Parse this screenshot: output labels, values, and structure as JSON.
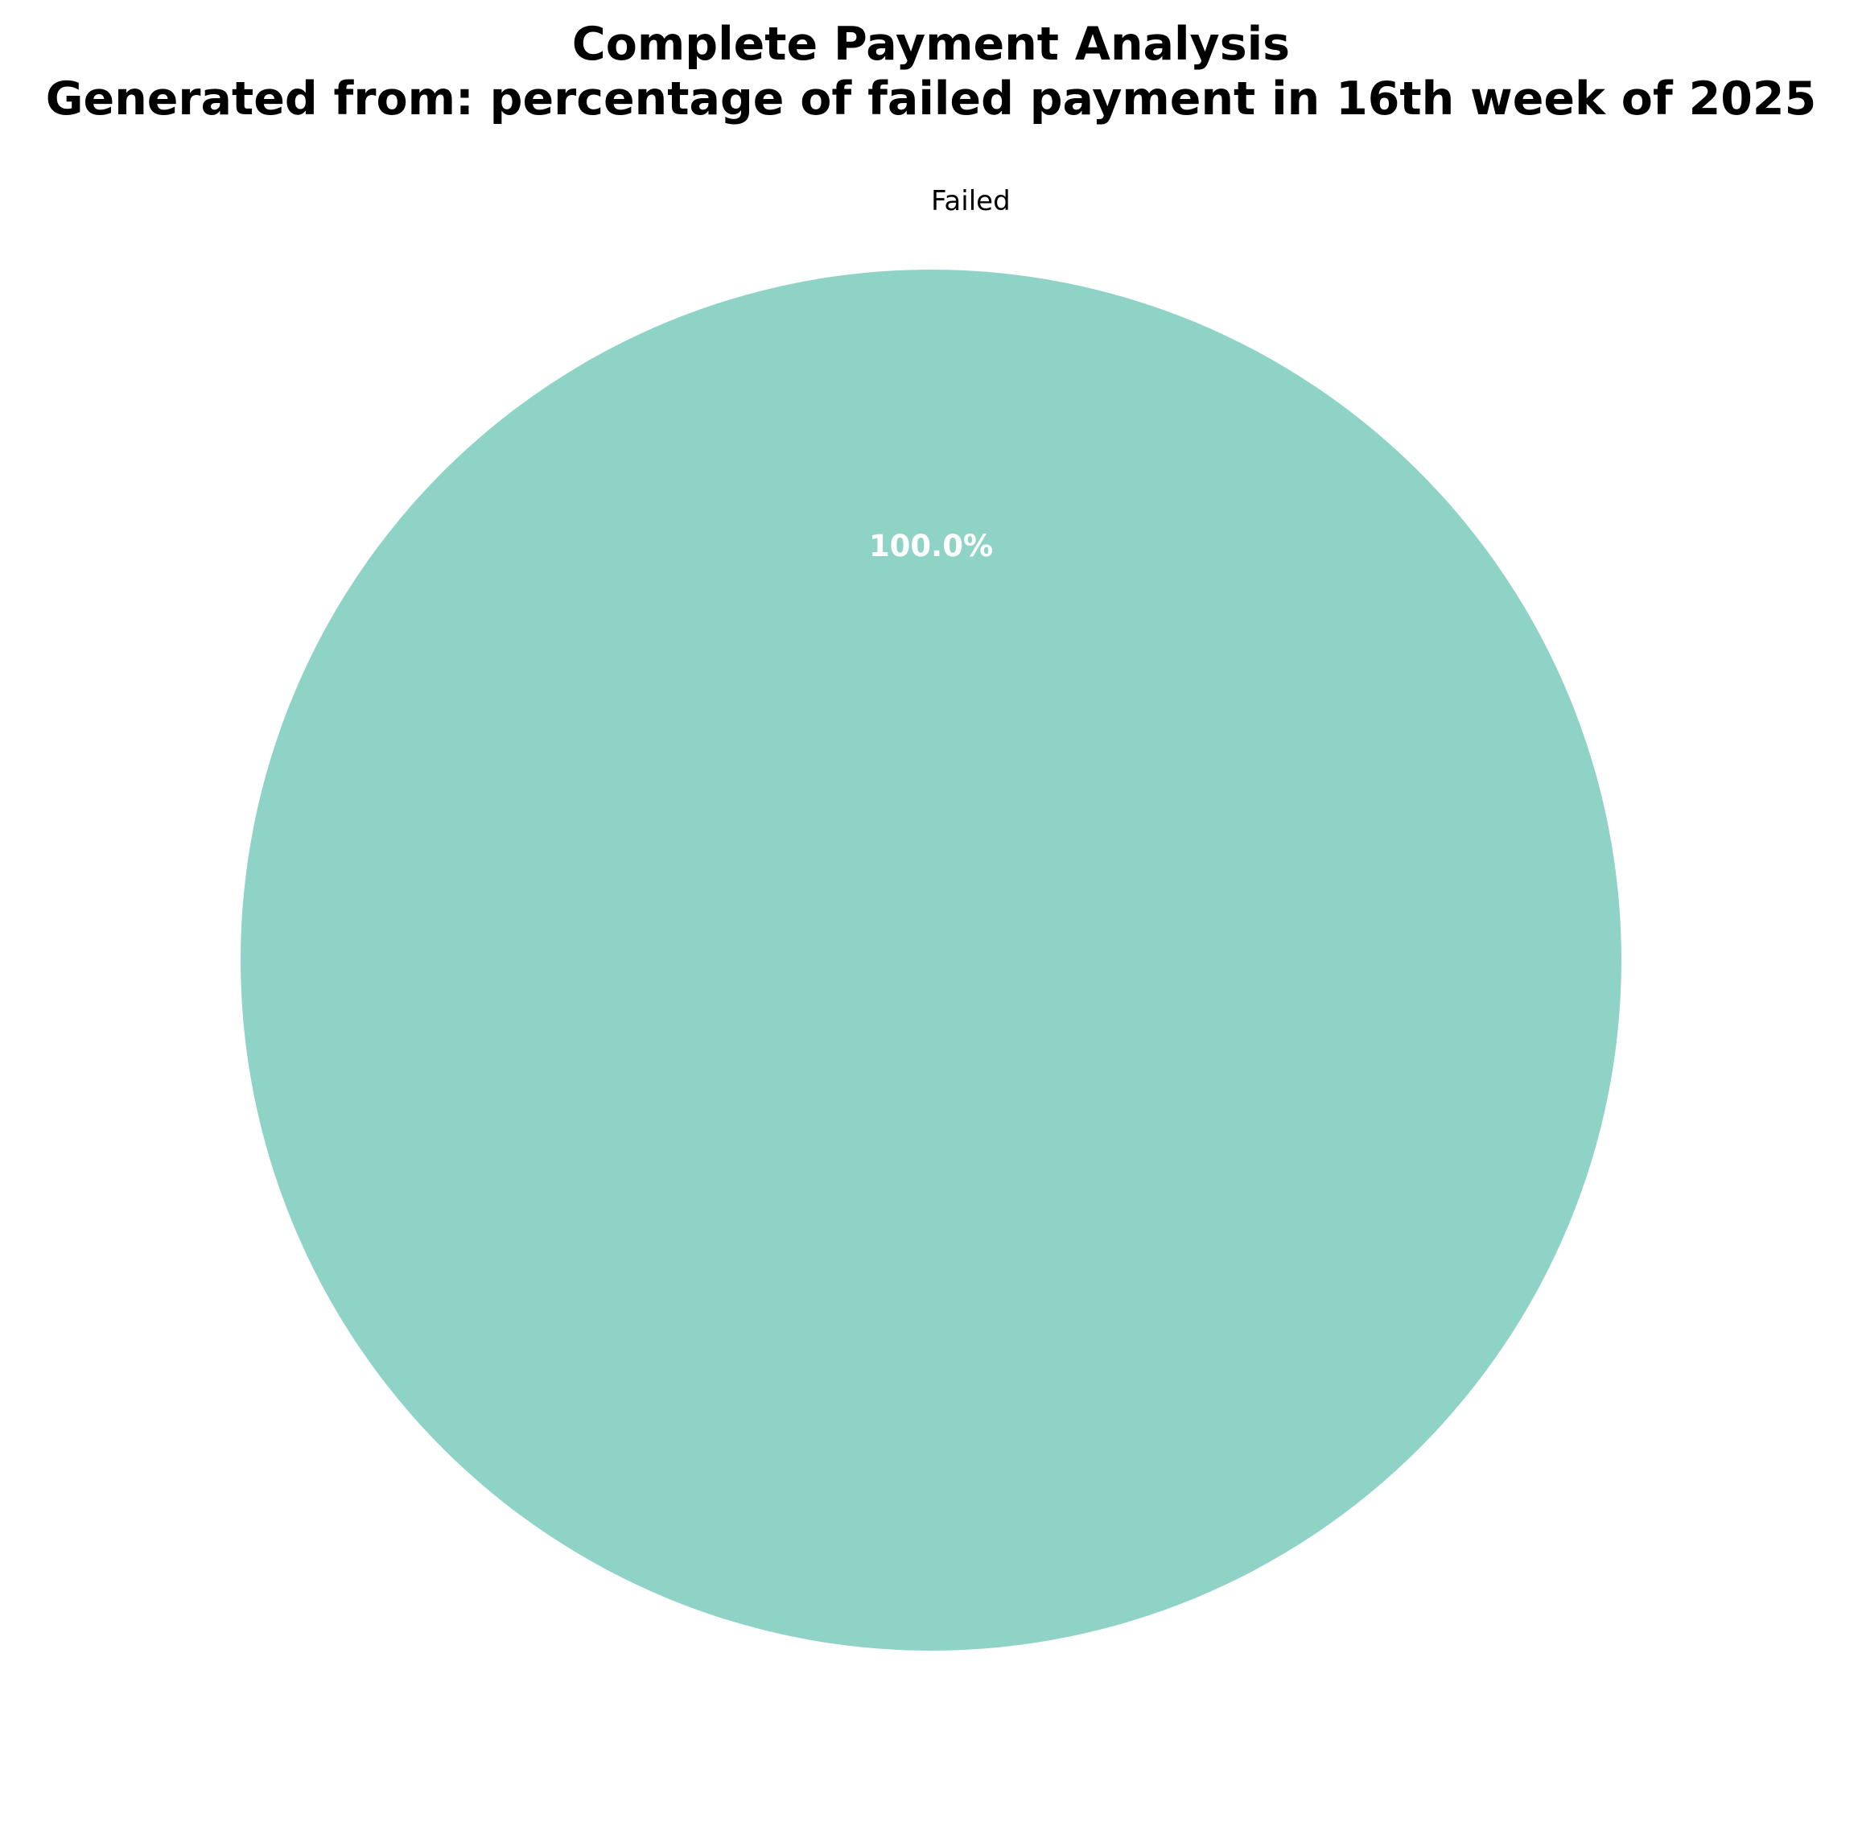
{
  "chart_data": {
    "type": "pie",
    "title_lines": [
      "Complete Payment Analysis",
      "Generated from: percentage of failed payment in 16th week of 2025"
    ],
    "slices": [
      {
        "label": "Failed",
        "value": 100.0,
        "pct_label": "100.0%",
        "color": "#8fd3c7"
      }
    ],
    "legend": "none"
  }
}
